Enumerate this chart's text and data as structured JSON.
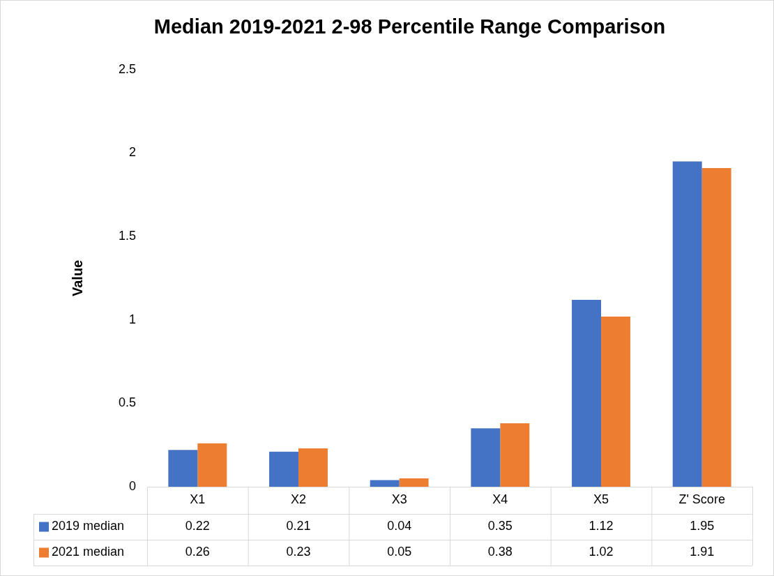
{
  "chart_data": {
    "type": "bar",
    "title": "Median 2019-2021 2-98 Percentile Range Comparison",
    "ylabel": "Value",
    "categories": [
      "X1",
      "X2",
      "X3",
      "X4",
      "X5",
      "Z' Score"
    ],
    "series": [
      {
        "name": "2019 median",
        "color": "#4472c4",
        "values": [
          0.22,
          0.21,
          0.04,
          0.35,
          1.12,
          1.95
        ]
      },
      {
        "name": "2021 median",
        "color": "#ed7d31",
        "values": [
          0.26,
          0.23,
          0.05,
          0.38,
          1.02,
          1.91
        ]
      }
    ],
    "ylim": [
      0,
      2.5
    ],
    "yticks": [
      0,
      0.5,
      1,
      1.5,
      2,
      2.5
    ],
    "grid": false,
    "legend": "bottom",
    "data_labels": true
  }
}
